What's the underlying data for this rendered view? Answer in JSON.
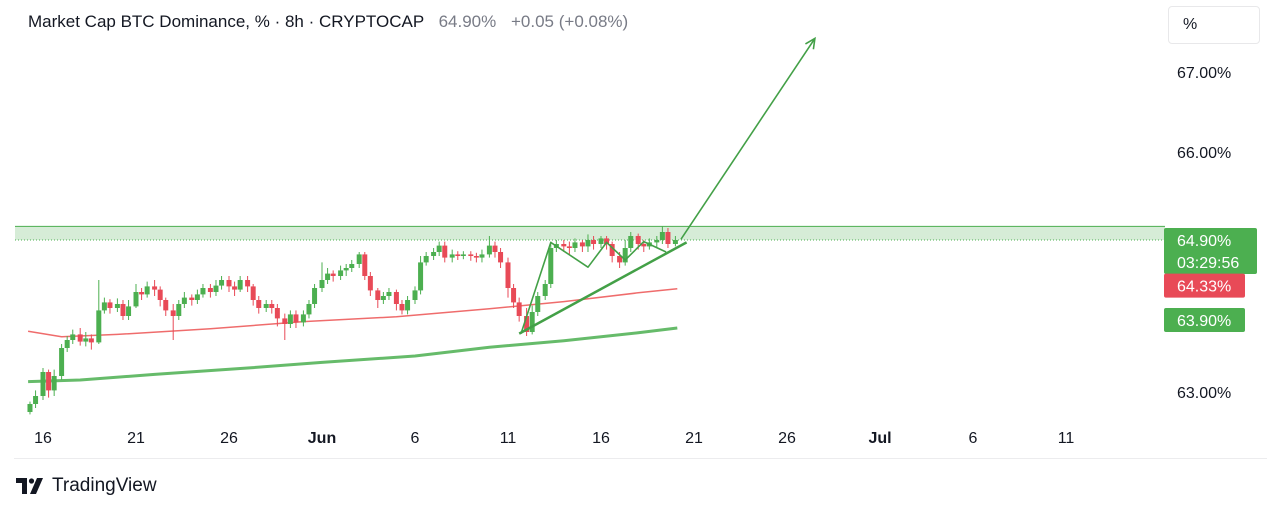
{
  "header": {
    "symbol": "Market Cap BTC Dominance, % · 8h · CRYPTOCAP",
    "last": "64.90%",
    "change": "+0.05 (+0.08%)"
  },
  "unit_button": "%",
  "footer": {
    "brand": "TradingView"
  },
  "colors": {
    "up": "#4caf50",
    "down": "#e84a57",
    "ma_short": "#ef6c6c",
    "ma_long": "#66bb6a",
    "zone": "#c8e6c9"
  },
  "chart_data": {
    "type": "candlestick",
    "title": "Market Cap BTC Dominance, % · 8h · CRYPTOCAP",
    "ylim": [
      62.55,
      68.0
    ],
    "yticks": [
      {
        "value": 67.0,
        "label": "67.00%"
      },
      {
        "value": 66.0,
        "label": "66.00%"
      },
      {
        "value": 63.0,
        "label": "63.00%"
      }
    ],
    "xticks": [
      {
        "day": 16,
        "label": "16"
      },
      {
        "day": 21,
        "label": "21"
      },
      {
        "day": 26,
        "label": "26"
      },
      {
        "day": 31,
        "label": "Jun",
        "bold": true
      },
      {
        "day": 36,
        "label": "6"
      },
      {
        "day": 41,
        "label": "11"
      },
      {
        "day": 46,
        "label": "16"
      },
      {
        "day": 51,
        "label": "21"
      },
      {
        "day": 56,
        "label": "26"
      },
      {
        "day": 61,
        "label": "Jul",
        "bold": true
      },
      {
        "day": 66,
        "label": "6"
      },
      {
        "day": 71,
        "label": "11"
      }
    ],
    "x_unit": "day (May 16 = 16; Jun 1 = 32)",
    "price_labels": [
      {
        "value": 64.9,
        "text": "64.90%",
        "sub": "03:29:56",
        "color": "#4caf50"
      },
      {
        "value": 64.33,
        "text": "64.33%",
        "color": "#e84a57"
      },
      {
        "value": 63.9,
        "text": "63.90%",
        "color": "#4caf50"
      }
    ],
    "resistance_zone": [
      64.9,
      65.07
    ],
    "moving_averages": [
      {
        "color": "#ef6c6c",
        "points": [
          [
            15.2,
            63.76
          ],
          [
            17,
            63.69
          ],
          [
            20,
            63.72
          ],
          [
            25,
            63.79
          ],
          [
            30,
            63.88
          ],
          [
            35,
            63.94
          ],
          [
            40,
            64.04
          ],
          [
            44,
            64.13
          ],
          [
            48,
            64.24
          ],
          [
            50.1,
            64.29
          ]
        ]
      },
      {
        "color": "#66bb6a",
        "points": [
          [
            15.2,
            63.13
          ],
          [
            18,
            63.15
          ],
          [
            22,
            63.22
          ],
          [
            27,
            63.3
          ],
          [
            31,
            63.37
          ],
          [
            36,
            63.45
          ],
          [
            40,
            63.56
          ],
          [
            44,
            63.64
          ],
          [
            48,
            63.74
          ],
          [
            50.1,
            63.8
          ]
        ]
      }
    ],
    "trendlines": [
      {
        "points": [
          [
            41.7,
            63.73
          ],
          [
            43.3,
            64.87
          ],
          [
            45.3,
            64.56
          ],
          [
            46.3,
            64.87
          ],
          [
            47.3,
            64.65
          ],
          [
            48.3,
            64.88
          ],
          [
            49.5,
            64.75
          ]
        ]
      },
      {
        "points": [
          [
            41.6,
            63.73
          ],
          [
            50.6,
            64.87
          ]
        ]
      },
      {
        "points": [
          [
            50.3,
            64.91
          ],
          [
            57.5,
            67.42
          ]
        ],
        "arrow": true
      }
    ],
    "candles": [
      [
        15.3,
        62.75,
        62.85,
        62.72,
        62.88
      ],
      [
        15.6,
        62.85,
        62.95,
        62.8,
        63.02
      ],
      [
        16.0,
        62.95,
        63.25,
        62.9,
        63.3
      ],
      [
        16.3,
        63.25,
        63.02,
        62.93,
        63.28
      ],
      [
        16.6,
        63.02,
        63.2,
        62.95,
        63.28
      ],
      [
        17.0,
        63.2,
        63.55,
        63.15,
        63.6
      ],
      [
        17.3,
        63.55,
        63.65,
        63.5,
        63.7
      ],
      [
        17.6,
        63.65,
        63.72,
        63.6,
        63.78
      ],
      [
        18.0,
        63.72,
        63.63,
        63.58,
        63.8
      ],
      [
        18.3,
        63.63,
        63.67,
        63.57,
        63.75
      ],
      [
        18.6,
        63.67,
        63.62,
        63.53,
        63.72
      ],
      [
        19.0,
        63.62,
        64.02,
        63.6,
        64.4
      ],
      [
        19.3,
        64.02,
        64.12,
        63.98,
        64.18
      ],
      [
        19.6,
        64.12,
        64.05,
        63.98,
        64.16
      ],
      [
        20.0,
        64.05,
        64.1,
        64.0,
        64.17
      ],
      [
        20.3,
        64.1,
        63.95,
        63.9,
        64.15
      ],
      [
        20.6,
        63.95,
        64.07,
        63.9,
        64.15
      ],
      [
        21.0,
        64.07,
        64.25,
        64.05,
        64.35
      ],
      [
        21.3,
        64.25,
        64.22,
        64.15,
        64.3
      ],
      [
        21.6,
        64.22,
        64.32,
        64.18,
        64.38
      ],
      [
        22.0,
        64.32,
        64.28,
        64.2,
        64.4
      ],
      [
        22.3,
        64.28,
        64.15,
        64.07,
        64.32
      ],
      [
        22.6,
        64.15,
        64.02,
        63.95,
        64.18
      ],
      [
        23.0,
        64.02,
        63.95,
        63.65,
        64.1
      ],
      [
        23.3,
        63.95,
        64.1,
        63.9,
        64.15
      ],
      [
        23.6,
        64.1,
        64.18,
        64.05,
        64.25
      ],
      [
        24.0,
        64.18,
        64.15,
        64.08,
        64.22
      ],
      [
        24.3,
        64.15,
        64.22,
        64.1,
        64.28
      ],
      [
        24.6,
        64.22,
        64.3,
        64.18,
        64.35
      ],
      [
        25.0,
        64.3,
        64.25,
        64.18,
        64.35
      ],
      [
        25.3,
        64.25,
        64.33,
        64.2,
        64.4
      ],
      [
        25.6,
        64.33,
        64.4,
        64.28,
        64.45
      ],
      [
        26.0,
        64.4,
        64.32,
        64.25,
        64.45
      ],
      [
        26.3,
        64.32,
        64.28,
        64.2,
        64.38
      ],
      [
        26.6,
        64.28,
        64.4,
        64.25,
        64.45
      ],
      [
        27.0,
        64.4,
        64.32,
        64.25,
        64.45
      ],
      [
        27.3,
        64.32,
        64.15,
        64.08,
        64.35
      ],
      [
        27.6,
        64.15,
        64.05,
        63.98,
        64.2
      ],
      [
        28.0,
        64.05,
        64.1,
        64.0,
        64.15
      ],
      [
        28.3,
        64.1,
        64.05,
        63.98,
        64.15
      ],
      [
        28.6,
        64.05,
        63.92,
        63.82,
        64.1
      ],
      [
        29.0,
        63.92,
        63.85,
        63.65,
        63.98
      ],
      [
        29.3,
        63.85,
        63.97,
        63.8,
        64.02
      ],
      [
        29.6,
        63.97,
        63.87,
        63.8,
        64.02
      ],
      [
        30.0,
        63.87,
        63.97,
        63.82,
        64.02
      ],
      [
        30.3,
        63.97,
        64.1,
        63.92,
        64.15
      ],
      [
        30.6,
        64.1,
        64.3,
        64.05,
        64.35
      ],
      [
        31.0,
        64.3,
        64.4,
        64.25,
        64.62
      ],
      [
        31.3,
        64.4,
        64.48,
        64.35,
        64.55
      ],
      [
        31.6,
        64.48,
        64.45,
        64.38,
        64.52
      ],
      [
        32.0,
        64.45,
        64.52,
        64.4,
        64.58
      ],
      [
        32.3,
        64.52,
        64.55,
        64.45,
        64.6
      ],
      [
        32.6,
        64.55,
        64.6,
        64.5,
        64.65
      ],
      [
        33.0,
        64.6,
        64.72,
        64.55,
        64.75
      ],
      [
        33.3,
        64.72,
        64.45,
        64.4,
        64.75
      ],
      [
        33.6,
        64.45,
        64.27,
        64.2,
        64.5
      ],
      [
        34.0,
        64.27,
        64.15,
        64.05,
        64.3
      ],
      [
        34.3,
        64.15,
        64.2,
        64.1,
        64.25
      ],
      [
        34.6,
        64.2,
        64.25,
        64.15,
        64.3
      ],
      [
        35.0,
        64.25,
        64.1,
        64.02,
        64.28
      ],
      [
        35.3,
        64.1,
        64.02,
        63.97,
        64.15
      ],
      [
        35.6,
        64.02,
        64.15,
        63.97,
        64.2
      ],
      [
        36.0,
        64.15,
        64.27,
        64.1,
        64.32
      ],
      [
        36.3,
        64.27,
        64.62,
        64.22,
        64.7
      ],
      [
        36.6,
        64.62,
        64.7,
        64.58,
        64.75
      ],
      [
        37.0,
        64.7,
        64.75,
        64.65,
        64.8
      ],
      [
        37.3,
        64.75,
        64.83,
        64.7,
        64.88
      ],
      [
        37.6,
        64.83,
        64.68,
        64.62,
        64.88
      ],
      [
        38.0,
        64.68,
        64.72,
        64.62,
        64.78
      ],
      [
        38.3,
        64.72,
        64.7,
        64.65,
        64.76
      ],
      [
        38.6,
        64.7,
        64.72,
        64.66,
        64.76
      ],
      [
        39.0,
        64.72,
        64.7,
        64.64,
        64.76
      ],
      [
        39.3,
        64.7,
        64.68,
        64.62,
        64.74
      ],
      [
        39.6,
        64.68,
        64.72,
        64.62,
        64.78
      ],
      [
        40.0,
        64.72,
        64.83,
        64.68,
        64.95
      ],
      [
        40.3,
        64.83,
        64.75,
        64.68,
        64.88
      ],
      [
        40.6,
        64.75,
        64.62,
        64.55,
        64.8
      ],
      [
        41.0,
        64.62,
        64.3,
        64.18,
        64.68
      ],
      [
        41.3,
        64.3,
        64.12,
        64.05,
        64.35
      ],
      [
        41.6,
        64.12,
        63.95,
        63.88,
        64.18
      ],
      [
        42.0,
        63.95,
        63.75,
        63.7,
        64.05
      ],
      [
        42.3,
        63.75,
        64.0,
        63.72,
        64.08
      ],
      [
        42.6,
        64.0,
        64.2,
        63.95,
        64.25
      ],
      [
        43.0,
        64.2,
        64.35,
        64.15,
        64.4
      ],
      [
        43.3,
        64.35,
        64.8,
        64.3,
        64.88
      ],
      [
        43.6,
        64.8,
        64.85,
        64.75,
        64.9
      ],
      [
        44.0,
        64.85,
        64.82,
        64.75,
        64.9
      ],
      [
        44.3,
        64.82,
        64.8,
        64.72,
        64.88
      ],
      [
        44.6,
        64.8,
        64.87,
        64.75,
        64.92
      ],
      [
        45.0,
        64.87,
        64.82,
        64.75,
        64.9
      ],
      [
        45.3,
        64.82,
        64.9,
        64.75,
        64.97
      ],
      [
        45.6,
        64.9,
        64.85,
        64.78,
        64.95
      ],
      [
        46.0,
        64.85,
        64.92,
        64.8,
        64.95
      ],
      [
        46.3,
        64.92,
        64.85,
        64.78,
        64.95
      ],
      [
        46.6,
        64.85,
        64.7,
        64.62,
        64.88
      ],
      [
        47.0,
        64.7,
        64.62,
        64.55,
        64.75
      ],
      [
        47.3,
        64.62,
        64.8,
        64.58,
        64.9
      ],
      [
        47.6,
        64.8,
        64.95,
        64.75,
        65.0
      ],
      [
        48.0,
        64.95,
        64.85,
        64.78,
        64.98
      ],
      [
        48.3,
        64.85,
        64.82,
        64.75,
        64.9
      ],
      [
        48.6,
        64.82,
        64.87,
        64.78,
        64.92
      ],
      [
        49.0,
        64.87,
        64.9,
        64.8,
        64.95
      ],
      [
        49.3,
        64.9,
        65.0,
        64.85,
        65.07
      ],
      [
        49.6,
        65.0,
        64.85,
        64.8,
        65.05
      ],
      [
        50.0,
        64.85,
        64.9,
        64.82,
        64.95
      ]
    ]
  }
}
